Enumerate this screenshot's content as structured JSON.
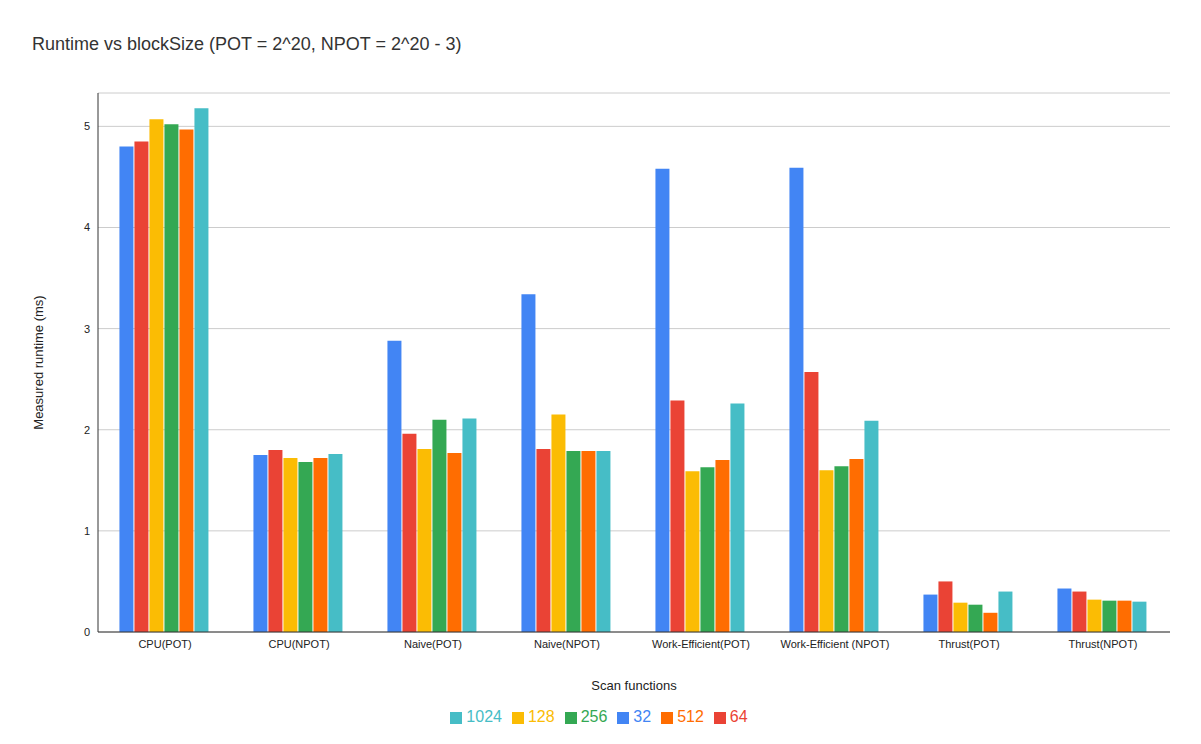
{
  "chart_data": {
    "type": "bar",
    "title": "Runtime vs blockSize (POT = 2^20, NPOT = 2^20 - 3)",
    "x_label": "Scan functions",
    "y_label": "Measured runtime (ms)",
    "categories": [
      "CPU(POT)",
      "CPU(NPOT)",
      "Naive(POT)",
      "Naive(NPOT)",
      "Work-Efficient(POT)",
      "Work-Efficient (NPOT)",
      "Thrust(POT)",
      "Thrust(NPOT)"
    ],
    "series": [
      {
        "name": "32",
        "color": "#4285f4",
        "values": [
          4.8,
          1.75,
          2.88,
          3.34,
          4.58,
          4.59,
          0.37,
          0.43
        ]
      },
      {
        "name": "64",
        "color": "#ea4335",
        "values": [
          4.85,
          1.8,
          1.96,
          1.81,
          2.29,
          2.57,
          0.5,
          0.4
        ]
      },
      {
        "name": "128",
        "color": "#fbbc04",
        "values": [
          5.07,
          1.72,
          1.81,
          2.15,
          1.59,
          1.6,
          0.29,
          0.32
        ]
      },
      {
        "name": "256",
        "color": "#34a853",
        "values": [
          5.02,
          1.68,
          2.1,
          1.79,
          1.63,
          1.64,
          0.27,
          0.31
        ]
      },
      {
        "name": "512",
        "color": "#ff6d01",
        "values": [
          4.97,
          1.72,
          1.77,
          1.79,
          1.7,
          1.71,
          0.19,
          0.31
        ]
      },
      {
        "name": "1024",
        "color": "#46bdc6",
        "values": [
          5.18,
          1.76,
          2.11,
          1.79,
          2.26,
          2.09,
          0.4,
          0.3
        ]
      }
    ],
    "ylim": [
      0,
      5.33
    ],
    "yticks": [
      0,
      1,
      2,
      3,
      4,
      5
    ],
    "grid": true,
    "legend": "bottom"
  }
}
